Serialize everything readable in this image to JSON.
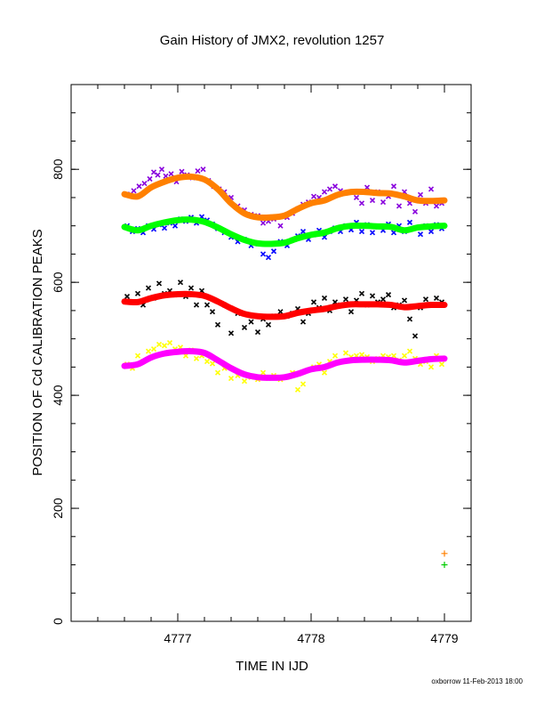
{
  "page": {
    "footer": "oxborrow 11-Feb-2013 18:00"
  },
  "chart_data": {
    "type": "scatter",
    "title": "Gain History of JMX2, revolution 1257",
    "xlabel": "TIME IN IJD",
    "ylabel": "POSITION OF Cd CALIBRATION PEAKS",
    "xlim": [
      4776.2,
      4779.2
    ],
    "ylim": [
      0,
      950
    ],
    "x_ticks": [
      4777,
      4778,
      4779
    ],
    "x_tick_labels": [
      "4777",
      "4778",
      "4779"
    ],
    "y_ticks": [
      0,
      200,
      400,
      600,
      800
    ],
    "y_tick_labels": [
      "0",
      "200",
      "400",
      "600",
      "800"
    ],
    "grid": false,
    "legend": "none",
    "smooth_series": [
      {
        "color": "#ff8000",
        "x": [
          4776.6,
          4776.7,
          4776.8,
          4776.9,
          4777.0,
          4777.1,
          4777.2,
          4777.3,
          4777.4,
          4777.5,
          4777.6,
          4777.7,
          4777.8,
          4777.9,
          4778.0,
          4778.1,
          4778.2,
          4778.3,
          4778.4,
          4778.5,
          4778.6,
          4778.7,
          4778.8,
          4778.9,
          4779.0
        ],
        "y": [
          756,
          752,
          768,
          778,
          785,
          787,
          782,
          765,
          740,
          722,
          715,
          715,
          718,
          730,
          740,
          745,
          755,
          760,
          760,
          758,
          757,
          752,
          745,
          744,
          745
        ]
      },
      {
        "color": "#00ff00",
        "x": [
          4776.6,
          4776.7,
          4776.8,
          4776.9,
          4777.0,
          4777.1,
          4777.2,
          4777.3,
          4777.4,
          4777.5,
          4777.6,
          4777.7,
          4777.8,
          4777.9,
          4778.0,
          4778.1,
          4778.2,
          4778.3,
          4778.4,
          4778.5,
          4778.6,
          4778.7,
          4778.8,
          4778.9,
          4779.0
        ],
        "y": [
          698,
          692,
          700,
          706,
          710,
          711,
          707,
          697,
          685,
          675,
          669,
          668,
          670,
          678,
          684,
          688,
          696,
          700,
          700,
          699,
          698,
          692,
          697,
          699,
          700
        ]
      },
      {
        "color": "#ff0000",
        "x": [
          4776.6,
          4776.7,
          4776.8,
          4776.9,
          4777.0,
          4777.1,
          4777.2,
          4777.3,
          4777.4,
          4777.5,
          4777.6,
          4777.7,
          4777.8,
          4777.9,
          4778.0,
          4778.1,
          4778.2,
          4778.3,
          4778.4,
          4778.5,
          4778.6,
          4778.7,
          4778.8,
          4778.9,
          4779.0
        ],
        "y": [
          566,
          565,
          572,
          577,
          579,
          579,
          576,
          566,
          554,
          544,
          540,
          539,
          540,
          546,
          550,
          553,
          558,
          561,
          561,
          561,
          560,
          556,
          558,
          560,
          560
        ]
      },
      {
        "color": "#ff00ff",
        "x": [
          4776.6,
          4776.7,
          4776.8,
          4776.9,
          4777.0,
          4777.1,
          4777.2,
          4777.3,
          4777.4,
          4777.5,
          4777.6,
          4777.7,
          4777.8,
          4777.9,
          4778.0,
          4778.1,
          4778.2,
          4778.3,
          4778.4,
          4778.5,
          4778.6,
          4778.7,
          4778.8,
          4778.9,
          4779.0
        ],
        "y": [
          452,
          455,
          467,
          474,
          477,
          478,
          475,
          462,
          448,
          437,
          432,
          431,
          432,
          438,
          446,
          450,
          458,
          462,
          463,
          463,
          462,
          458,
          461,
          464,
          465
        ]
      }
    ],
    "scatter_series": [
      {
        "color": "#8800dd",
        "x": [
          4776.62,
          4776.67,
          4776.71,
          4776.75,
          4776.79,
          4776.82,
          4776.85,
          4776.88,
          4776.91,
          4776.95,
          4776.99,
          4777.03,
          4777.07,
          4777.11,
          4777.15,
          4777.19,
          4777.23,
          4777.27,
          4777.31,
          4777.35,
          4777.4,
          4777.45,
          4777.5,
          4777.55,
          4777.6,
          4777.64,
          4777.68,
          4777.72,
          4777.77,
          4777.82,
          4777.86,
          4777.9,
          4777.94,
          4777.98,
          4778.02,
          4778.06,
          4778.1,
          4778.14,
          4778.18,
          4778.22,
          4778.26,
          4778.3,
          4778.34,
          4778.38,
          4778.42,
          4778.46,
          4778.5,
          4778.54,
          4778.58,
          4778.62,
          4778.66,
          4778.7,
          4778.74,
          4778.78,
          4778.82,
          4778.86,
          4778.9,
          4778.94,
          4778.98
        ],
        "y": [
          756,
          762,
          770,
          775,
          783,
          795,
          790,
          800,
          788,
          792,
          778,
          796,
          790,
          785,
          797,
          800,
          780,
          770,
          765,
          760,
          750,
          735,
          728,
          720,
          718,
          705,
          708,
          712,
          700,
          715,
          722,
          730,
          738,
          742,
          752,
          750,
          760,
          765,
          770,
          762,
          758,
          760,
          750,
          740,
          768,
          745,
          760,
          742,
          752,
          770,
          735,
          760,
          740,
          725,
          755,
          740,
          765,
          735,
          740
        ]
      },
      {
        "color": "#0000ff",
        "x": [
          4776.62,
          4776.66,
          4776.7,
          4776.74,
          4776.78,
          4776.82,
          4776.86,
          4776.9,
          4776.94,
          4776.98,
          4777.02,
          4777.06,
          4777.1,
          4777.14,
          4777.18,
          4777.22,
          4777.26,
          4777.3,
          4777.35,
          4777.4,
          4777.45,
          4777.5,
          4777.55,
          4777.6,
          4777.64,
          4777.68,
          4777.72,
          4777.77,
          4777.82,
          4777.86,
          4777.9,
          4777.94,
          4777.98,
          4778.02,
          4778.06,
          4778.1,
          4778.14,
          4778.18,
          4778.22,
          4778.26,
          4778.3,
          4778.34,
          4778.38,
          4778.42,
          4778.46,
          4778.5,
          4778.54,
          4778.58,
          4778.62,
          4778.66,
          4778.7,
          4778.74,
          4778.78,
          4778.82,
          4778.86,
          4778.9,
          4778.94,
          4778.98
        ],
        "y": [
          700,
          690,
          695,
          688,
          700,
          694,
          702,
          696,
          705,
          700,
          712,
          708,
          715,
          705,
          716,
          710,
          703,
          695,
          688,
          680,
          672,
          676,
          665,
          668,
          650,
          644,
          655,
          672,
          665,
          675,
          682,
          690,
          676,
          684,
          692,
          680,
          690,
          696,
          690,
          700,
          693,
          706,
          690,
          702,
          688,
          698,
          692,
          703,
          688,
          700,
          690,
          706,
          696,
          685,
          700,
          690,
          702,
          695
        ]
      },
      {
        "color": "#000000",
        "x": [
          4776.62,
          4776.66,
          4776.7,
          4776.74,
          4776.78,
          4776.82,
          4776.86,
          4776.9,
          4776.94,
          4776.98,
          4777.02,
          4777.06,
          4777.1,
          4777.14,
          4777.18,
          4777.22,
          4777.26,
          4777.3,
          4777.35,
          4777.4,
          4777.45,
          4777.5,
          4777.55,
          4777.6,
          4777.64,
          4777.68,
          4777.72,
          4777.77,
          4777.82,
          4777.86,
          4777.9,
          4777.94,
          4777.98,
          4778.02,
          4778.06,
          4778.1,
          4778.14,
          4778.18,
          4778.22,
          4778.26,
          4778.3,
          4778.34,
          4778.38,
          4778.42,
          4778.46,
          4778.5,
          4778.54,
          4778.58,
          4778.62,
          4778.66,
          4778.7,
          4778.74,
          4778.78,
          4778.82,
          4778.86,
          4778.9,
          4778.94,
          4778.98
        ],
        "y": [
          575,
          565,
          580,
          560,
          590,
          572,
          598,
          580,
          585,
          578,
          600,
          575,
          590,
          560,
          585,
          560,
          548,
          525,
          560,
          510,
          545,
          520,
          530,
          512,
          535,
          525,
          540,
          548,
          540,
          545,
          553,
          530,
          545,
          565,
          555,
          572,
          550,
          565,
          560,
          570,
          548,
          568,
          580,
          560,
          576,
          565,
          570,
          578,
          555,
          560,
          568,
          535,
          505,
          555,
          570,
          560,
          572,
          565
        ]
      },
      {
        "color": "#ffff00",
        "x": [
          4776.62,
          4776.66,
          4776.7,
          4776.74,
          4776.78,
          4776.82,
          4776.86,
          4776.9,
          4776.94,
          4776.98,
          4777.02,
          4777.06,
          4777.1,
          4777.14,
          4777.18,
          4777.22,
          4777.26,
          4777.3,
          4777.35,
          4777.4,
          4777.45,
          4777.5,
          4777.55,
          4777.6,
          4777.64,
          4777.68,
          4777.72,
          4777.77,
          4777.82,
          4777.86,
          4777.9,
          4777.94,
          4777.98,
          4778.02,
          4778.06,
          4778.1,
          4778.14,
          4778.18,
          4778.22,
          4778.26,
          4778.3,
          4778.34,
          4778.38,
          4778.42,
          4778.46,
          4778.5,
          4778.54,
          4778.58,
          4778.62,
          4778.66,
          4778.7,
          4778.74,
          4778.78,
          4778.82,
          4778.86,
          4778.9,
          4778.94,
          4778.98
        ],
        "y": [
          455,
          448,
          470,
          460,
          478,
          482,
          490,
          488,
          493,
          482,
          485,
          470,
          480,
          465,
          470,
          460,
          456,
          440,
          448,
          430,
          435,
          425,
          432,
          428,
          440,
          430,
          435,
          428,
          432,
          440,
          410,
          420,
          445,
          450,
          455,
          440,
          460,
          470,
          460,
          475,
          468,
          470,
          472,
          468,
          460,
          465,
          470,
          468,
          470,
          462,
          470,
          478,
          465,
          455,
          460,
          450,
          470,
          455
        ]
      }
    ],
    "corner_markers": [
      {
        "color": "#ff8000",
        "x": 4779.0,
        "y": 120
      },
      {
        "color": "#00cc00",
        "x": 4779.0,
        "y": 100
      }
    ]
  }
}
